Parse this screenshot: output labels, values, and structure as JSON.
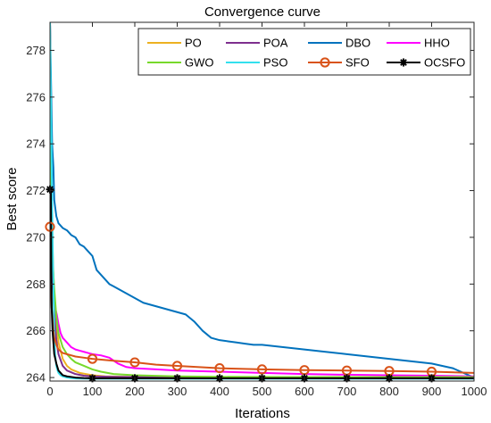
{
  "chart_data": {
    "type": "line",
    "title": "Convergence curve",
    "xlabel": "Iterations",
    "ylabel": "Best score",
    "xlim": [
      0,
      1000
    ],
    "ylim": [
      263.85,
      279.2
    ],
    "x_ticks": [
      0,
      100,
      200,
      300,
      400,
      500,
      600,
      700,
      800,
      900,
      1000
    ],
    "y_ticks": [
      264,
      266,
      268,
      270,
      272,
      274,
      276,
      278
    ],
    "grid": false,
    "legend_position": "top-right",
    "series": [
      {
        "name": "PO",
        "color": "#EDB120",
        "marker": "none",
        "x": [
          0,
          3,
          6,
          10,
          15,
          20,
          30,
          40,
          50,
          70,
          100,
          130,
          200,
          300,
          400,
          600,
          800,
          1000
        ],
        "y": [
          279.2,
          272.5,
          269.5,
          267.5,
          266.3,
          265.5,
          264.8,
          264.5,
          264.35,
          264.2,
          264.1,
          264.05,
          264.02,
          264.0,
          264.0,
          264.0,
          264.0,
          264.0
        ]
      },
      {
        "name": "POA",
        "color": "#7E2F8E",
        "marker": "none",
        "x": [
          0,
          3,
          6,
          10,
          15,
          20,
          30,
          40,
          60,
          80,
          100,
          150,
          200,
          400,
          700,
          1000
        ],
        "y": [
          279.2,
          271.0,
          268.5,
          266.8,
          265.6,
          265.0,
          264.5,
          264.3,
          264.15,
          264.08,
          264.05,
          264.03,
          264.02,
          264.0,
          264.0,
          264.0
        ]
      },
      {
        "name": "DBO",
        "color": "#0072BD",
        "marker": "none",
        "x": [
          0,
          3,
          5,
          8,
          10,
          15,
          20,
          30,
          40,
          50,
          60,
          70,
          80,
          90,
          100,
          110,
          120,
          130,
          140,
          150,
          160,
          180,
          200,
          220,
          240,
          260,
          280,
          300,
          320,
          340,
          360,
          380,
          400,
          420,
          440,
          460,
          480,
          500,
          550,
          600,
          650,
          700,
          750,
          800,
          850,
          900,
          950,
          1000
        ],
        "y": [
          279.2,
          276.0,
          274.0,
          273.0,
          271.6,
          270.9,
          270.6,
          270.4,
          270.3,
          270.1,
          270.0,
          269.7,
          269.6,
          269.4,
          269.2,
          268.6,
          268.4,
          268.2,
          268.0,
          267.9,
          267.8,
          267.6,
          267.4,
          267.2,
          267.1,
          267.0,
          266.9,
          266.8,
          266.7,
          266.4,
          266.0,
          265.7,
          265.6,
          265.55,
          265.5,
          265.45,
          265.4,
          265.4,
          265.3,
          265.2,
          265.1,
          265.0,
          264.9,
          264.8,
          264.7,
          264.6,
          264.4,
          264.0
        ]
      },
      {
        "name": "HHO",
        "color": "#FF00FF",
        "marker": "none",
        "x": [
          0,
          4,
          8,
          12,
          16,
          20,
          25,
          30,
          40,
          50,
          60,
          70,
          80,
          90,
          100,
          120,
          140,
          160,
          180,
          200,
          250,
          300,
          400,
          500,
          600,
          700,
          800,
          900,
          1000
        ],
        "y": [
          279.2,
          270.5,
          268.0,
          267.0,
          266.7,
          266.3,
          265.9,
          265.7,
          265.5,
          265.3,
          265.2,
          265.15,
          265.1,
          265.05,
          265.0,
          264.95,
          264.85,
          264.6,
          264.45,
          264.4,
          264.35,
          264.3,
          264.25,
          264.2,
          264.15,
          264.12,
          264.1,
          264.08,
          264.05
        ]
      },
      {
        "name": "GWO",
        "color": "#77D92B",
        "marker": "none",
        "x": [
          0,
          3,
          6,
          10,
          15,
          20,
          30,
          40,
          50,
          60,
          80,
          100,
          120,
          150,
          200,
          300,
          400,
          600,
          800,
          1000
        ],
        "y": [
          279.2,
          272.0,
          269.0,
          267.8,
          266.6,
          265.9,
          265.3,
          265.0,
          264.8,
          264.65,
          264.5,
          264.35,
          264.25,
          264.15,
          264.1,
          264.05,
          264.03,
          264.02,
          264.02,
          264.02
        ]
      },
      {
        "name": "PSO",
        "color": "#33E0EE",
        "marker": "none",
        "x": [
          0,
          2,
          4,
          6,
          8,
          10,
          12,
          15,
          18,
          20,
          25,
          30,
          40,
          50,
          60,
          100,
          200,
          500,
          1000
        ],
        "y": [
          279.2,
          276.0,
          273.0,
          270.0,
          268.0,
          266.0,
          265.0,
          264.5,
          264.3,
          264.2,
          264.1,
          264.05,
          264.0,
          263.98,
          263.96,
          263.95,
          263.95,
          263.95,
          263.95
        ]
      },
      {
        "name": "SFO",
        "color": "#D95319",
        "marker": "circle",
        "marker_x": [
          0,
          100,
          200,
          300,
          400,
          500,
          600,
          700,
          800,
          900
        ],
        "x": [
          0,
          2,
          4,
          6,
          8,
          10,
          15,
          20,
          30,
          40,
          50,
          60,
          80,
          100,
          150,
          200,
          250,
          300,
          400,
          500,
          600,
          700,
          800,
          900,
          1000
        ],
        "y": [
          270.45,
          268.0,
          267.0,
          266.5,
          266.0,
          265.7,
          265.4,
          265.2,
          265.05,
          265.0,
          264.95,
          264.9,
          264.85,
          264.8,
          264.72,
          264.65,
          264.55,
          264.5,
          264.4,
          264.35,
          264.32,
          264.3,
          264.28,
          264.25,
          264.2
        ]
      },
      {
        "name": "OCSFO",
        "color": "#000000",
        "marker": "asterisk",
        "marker_x": [
          0,
          100,
          200,
          300,
          400,
          500,
          600,
          700,
          800,
          900
        ],
        "x": [
          0,
          2,
          3,
          4,
          6,
          8,
          10,
          15,
          20,
          30,
          40,
          60,
          80,
          100,
          200,
          500,
          1000
        ],
        "y": [
          272.05,
          272.05,
          269.0,
          267.0,
          266.0,
          265.5,
          265.0,
          264.6,
          264.3,
          264.1,
          264.05,
          264.0,
          263.98,
          263.97,
          263.97,
          263.97,
          263.97
        ]
      }
    ]
  }
}
